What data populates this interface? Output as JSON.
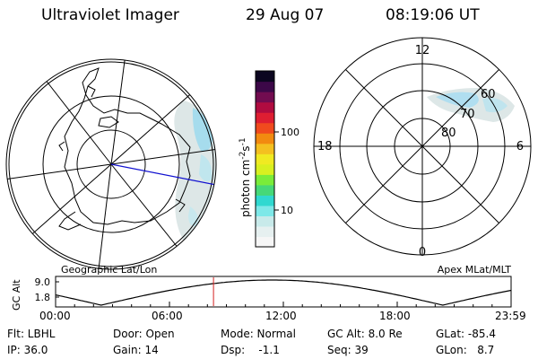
{
  "header": {
    "instrument": "Ultraviolet Imager",
    "date": "29 Aug 07",
    "time": "08:19:06 UT"
  },
  "geo_panel": {
    "label": "Geographic Lat/Lon"
  },
  "mag_panel": {
    "label": "Apex MLat/MLT",
    "mlt_labels": {
      "top": "12",
      "left": "18",
      "right": "6",
      "bottom": "0"
    },
    "lat_labels": [
      "60",
      "70",
      "80"
    ]
  },
  "colorbar": {
    "unit_prefix": "photon cm",
    "unit_exp1": "-2",
    "unit_mid": "s",
    "unit_exp2": "-1",
    "ticks": [
      "100",
      "10"
    ],
    "colors": [
      "#f6f6f6",
      "#e6f0f0",
      "#c8eaea",
      "#7ee8e8",
      "#30d8d0",
      "#46d878",
      "#7aec3a",
      "#d8f020",
      "#f0ea22",
      "#f4c020",
      "#f28a10",
      "#f04a1e",
      "#de1e32",
      "#b00c40",
      "#720c50",
      "#3c0848",
      "#0c0620"
    ]
  },
  "altitude": {
    "axis_label": "GC Alt",
    "y_ticks": [
      "9.0",
      "1.8"
    ],
    "time_ticks": [
      "00:00",
      "06:00",
      "12:00",
      "18:00",
      "23:59"
    ],
    "current_time_fraction": 0.3466,
    "trace_color": "#d42020"
  },
  "info": {
    "row1": {
      "filter": "Flt: LBHL",
      "door": "Door: Open",
      "mode": "Mode: Normal",
      "gc_alt": "GC Alt: 8.0 Re",
      "glat": "GLat: -85.4"
    },
    "row2": {
      "ip": "IP: 36.0",
      "gain": "Gain: 14",
      "dsp": "Dsp:    -1.1",
      "seq": "Seq: 39",
      "glon": "GLon:   8.7"
    }
  },
  "colors": {
    "aurora_faint": "#d8e4e4",
    "aurora_cyan": "#9adcf0",
    "sun_line": "#1010d0"
  }
}
